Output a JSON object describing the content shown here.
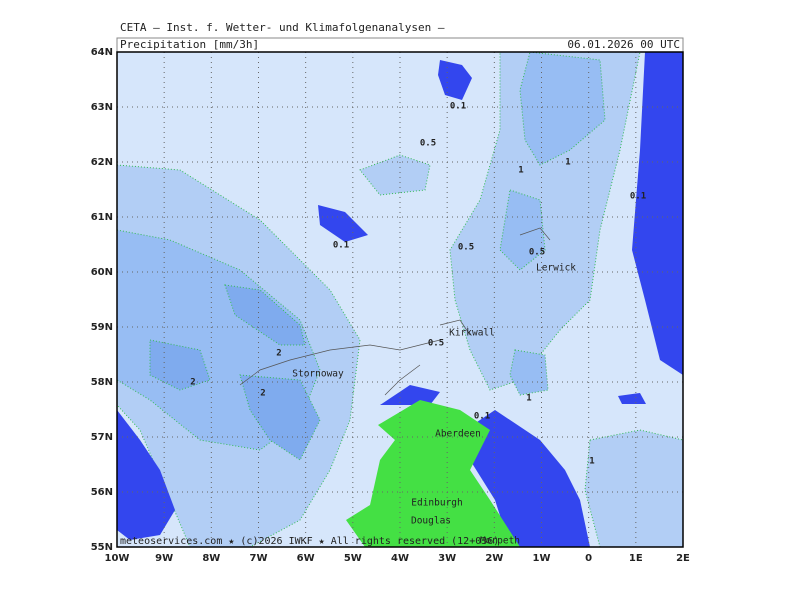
{
  "header": {
    "source": "CETA — Inst. f. Wetter- und Klimafolgenanalysen —",
    "variable": "Precipitation [mm/3h]",
    "datetime": "06.01.2026 00 UTC"
  },
  "axes": {
    "lat_labels": [
      "64N",
      "63N",
      "62N",
      "61N",
      "60N",
      "59N",
      "58N",
      "57N",
      "56N",
      "55N"
    ],
    "lon_labels": [
      "10W",
      "9W",
      "8W",
      "7W",
      "6W",
      "5W",
      "4W",
      "3W",
      "2W",
      "1W",
      "0",
      "1E",
      "2E"
    ]
  },
  "contour_labels": [
    "0.1",
    "0.5",
    "1",
    "1",
    "0.1",
    "0.1",
    "0.5",
    "0.5",
    "2",
    "2",
    "2",
    "0.5",
    "0.1",
    "1",
    "1"
  ],
  "places": [
    "Lerwick",
    "Kirkwall",
    "Stornoway",
    "Aberdeen",
    "Edinburgh",
    "Douglas",
    "Morpeth"
  ],
  "footer": "meteoservices.com ★ (c)2026 IWKF ★ All rights reserved (12+036)"
}
